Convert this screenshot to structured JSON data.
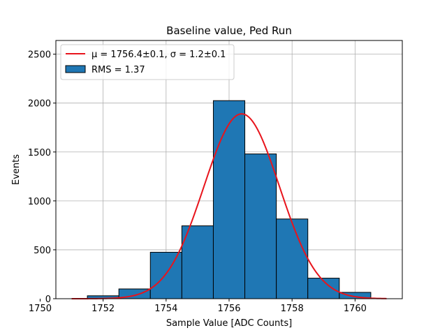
{
  "chart_data": {
    "type": "bar",
    "title": "Baseline value, Ped Run",
    "xlabel": "Sample Value [ADC Counts]",
    "ylabel": "Events",
    "xlim": [
      1750.5,
      1761.5
    ],
    "ylim": [
      0,
      2640
    ],
    "xticks": [
      1750,
      1752,
      1754,
      1756,
      1758,
      1760
    ],
    "yticks": [
      0,
      500,
      1000,
      1500,
      2000,
      2500
    ],
    "grid": true,
    "legend_position": "top-left",
    "bins": [
      {
        "left": 1751.5,
        "right": 1752.5,
        "count": 30
      },
      {
        "left": 1752.5,
        "right": 1753.5,
        "count": 100
      },
      {
        "left": 1753.5,
        "right": 1754.5,
        "count": 475
      },
      {
        "left": 1754.5,
        "right": 1755.5,
        "count": 745
      },
      {
        "left": 1755.5,
        "right": 1756.5,
        "count": 2025
      },
      {
        "left": 1756.5,
        "right": 1757.5,
        "count": 1480
      },
      {
        "left": 1757.5,
        "right": 1758.5,
        "count": 815
      },
      {
        "left": 1758.5,
        "right": 1759.5,
        "count": 210
      },
      {
        "left": 1759.5,
        "right": 1760.5,
        "count": 65
      }
    ],
    "fit": {
      "type": "gaussian",
      "mu": 1756.4,
      "sigma": 1.2,
      "amplitude": 1890,
      "x_range": [
        1751,
        1761
      ],
      "color": "#e8141c"
    },
    "series": [
      {
        "name": "μ = 1756.4±0.1, σ = 1.2±0.1",
        "type": "line",
        "color": "#e8141c"
      },
      {
        "name": "RMS = 1.37",
        "type": "bar",
        "color": "#1f77b4"
      }
    ]
  }
}
